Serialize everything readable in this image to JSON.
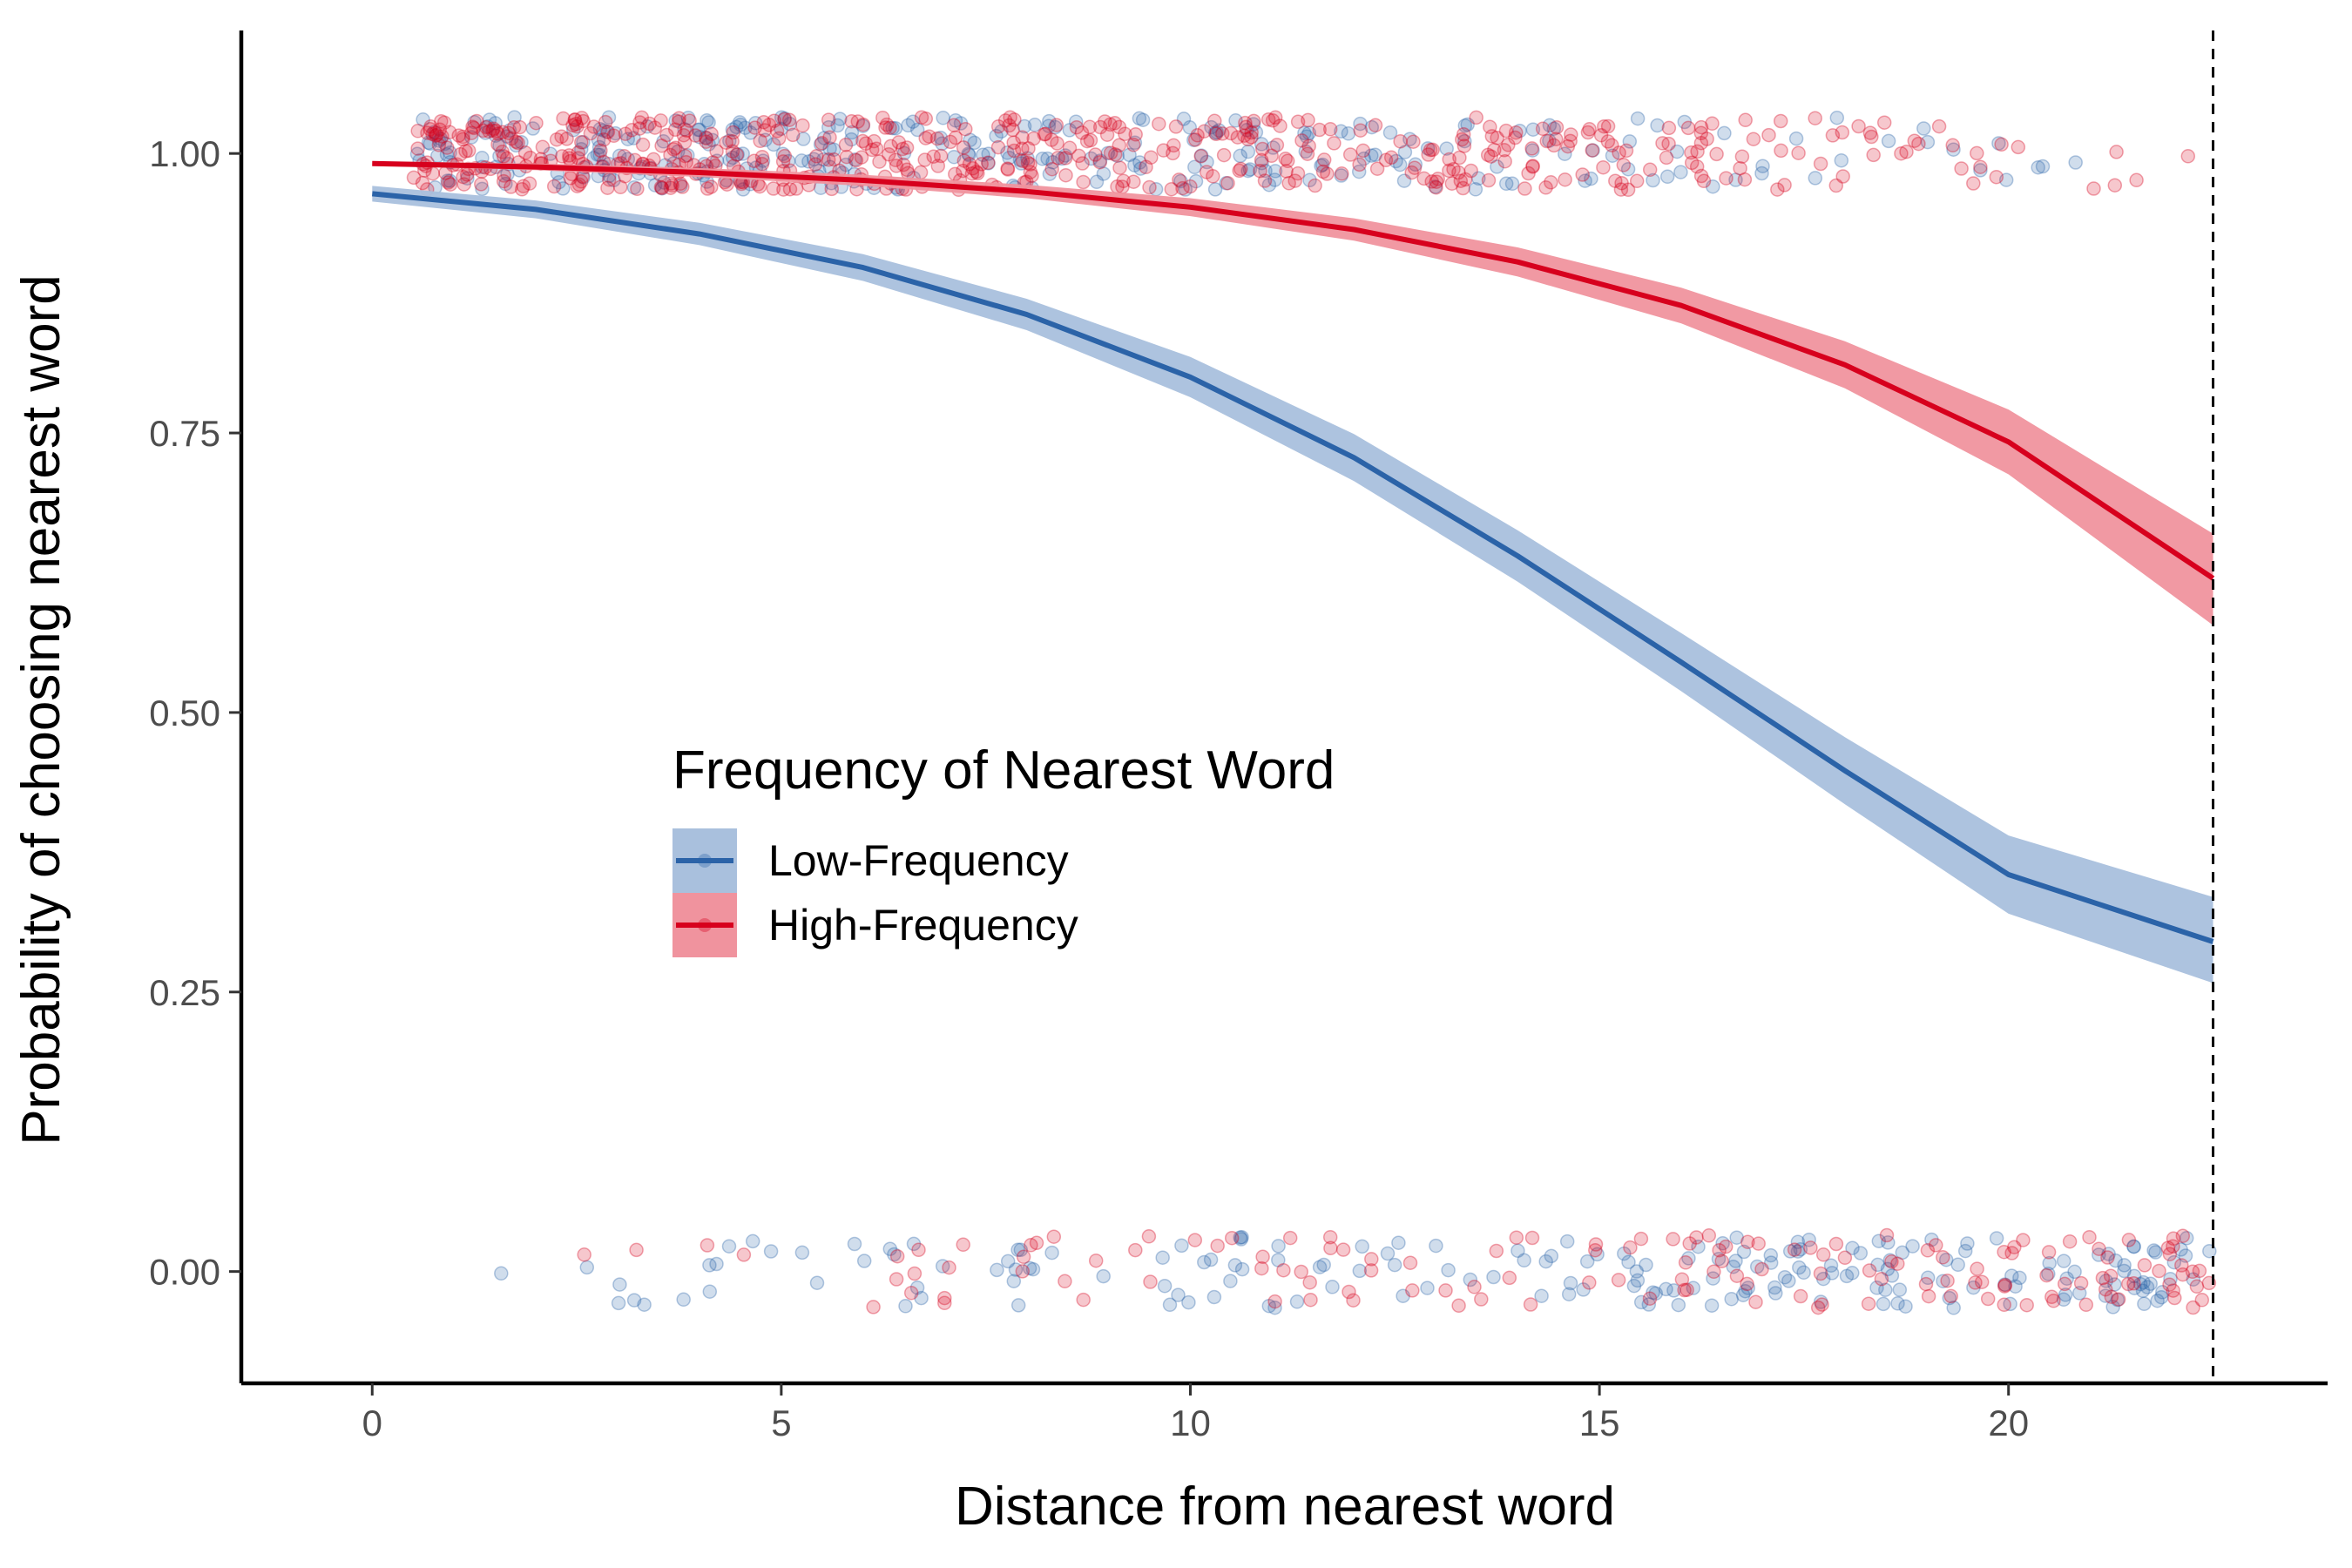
{
  "chart_data": {
    "type": "line",
    "xlabel": "Distance from nearest word",
    "ylabel": "Probability of choosing nearest word",
    "xlim": [
      -1.6,
      23.9
    ],
    "ylim": [
      -0.1,
      1.11
    ],
    "x_ticks": [
      0,
      5,
      10,
      15,
      20
    ],
    "x_tick_labels": [
      "0",
      "5",
      "10",
      "15",
      "20"
    ],
    "y_ticks": [
      0,
      0.25,
      0.5,
      0.75,
      1.0
    ],
    "y_tick_labels": [
      "0.00",
      "0.25",
      "0.50",
      "0.75",
      "1.00"
    ],
    "grid": false,
    "reference_line": {
      "x": 22.5,
      "style": "dashed"
    },
    "legend": {
      "title": "Frequency of Nearest Word",
      "placement": "center-left",
      "entries": [
        "Low-Frequency",
        "High-Frequency"
      ]
    },
    "colors": {
      "Low-Frequency": "#2b63a8",
      "Low-Frequency-band": "#a9c0dd",
      "High-Frequency": "#d7001d",
      "High-Frequency-band": "#f0939e"
    },
    "series": [
      {
        "name": "Low-Frequency",
        "x": [
          0,
          2,
          4,
          6,
          8,
          10,
          12,
          14,
          16,
          18,
          20,
          22.5
        ],
        "y": [
          0.964,
          0.95,
          0.928,
          0.898,
          0.856,
          0.8,
          0.728,
          0.64,
          0.545,
          0.448,
          0.355,
          0.295
        ],
        "lower": [
          0.957,
          0.942,
          0.918,
          0.886,
          0.842,
          0.782,
          0.707,
          0.617,
          0.519,
          0.418,
          0.32,
          0.258
        ],
        "upper": [
          0.971,
          0.958,
          0.938,
          0.91,
          0.87,
          0.818,
          0.749,
          0.663,
          0.571,
          0.478,
          0.39,
          0.335
        ],
        "jitter_points": {
          "y1_count": 320,
          "y1_x_range": [
            0.5,
            22.5
          ],
          "y0_count": 200,
          "y0_x_range": [
            0.6,
            22.5
          ]
        }
      },
      {
        "name": "High-Frequency",
        "x": [
          0,
          2,
          4,
          6,
          8,
          10,
          12,
          14,
          16,
          18,
          20,
          22.5
        ],
        "y": [
          0.991,
          0.988,
          0.983,
          0.976,
          0.966,
          0.952,
          0.932,
          0.903,
          0.864,
          0.811,
          0.742,
          0.62
        ],
        "lower": [
          0.989,
          0.985,
          0.979,
          0.971,
          0.96,
          0.944,
          0.922,
          0.89,
          0.848,
          0.79,
          0.713,
          0.578
        ],
        "upper": [
          0.993,
          0.991,
          0.987,
          0.981,
          0.972,
          0.96,
          0.942,
          0.916,
          0.88,
          0.832,
          0.771,
          0.66
        ],
        "jitter_points": {
          "y1_count": 560,
          "y1_x_range": [
            0.5,
            22.5
          ],
          "y0_count": 150,
          "y0_x_range": [
            0.6,
            22.5
          ]
        }
      }
    ]
  }
}
